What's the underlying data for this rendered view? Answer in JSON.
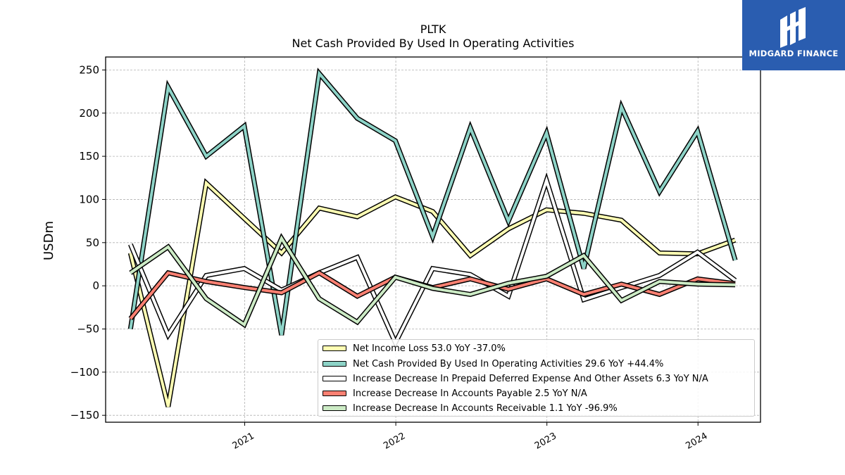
{
  "header": {
    "ticker": "PLTK",
    "subtitle": "Net Cash Provided By Used In Operating Activities"
  },
  "logo": {
    "text": "MIDGARD FINANCE",
    "color": "#2a5db0"
  },
  "chart_data": {
    "type": "line",
    "title": "PLTK",
    "subtitle": "Net Cash Provided By Used In Operating Activities",
    "xlabel": "",
    "ylabel": "USDm",
    "ylim": [
      -158,
      265
    ],
    "xlim": [
      "2020-01-31",
      "2024-05-31"
    ],
    "grid": true,
    "legend_position": "lower-right",
    "y_ticks": [
      -150,
      -100,
      -50,
      0,
      50,
      100,
      150,
      200,
      250
    ],
    "y_tick_labels": [
      "−150",
      "−100",
      "−50",
      "0",
      "50",
      "100",
      "150",
      "200",
      "250"
    ],
    "x_ticks": [
      "2021-01-01",
      "2022-01-01",
      "2023-01-01",
      "2024-01-01"
    ],
    "x_tick_labels": [
      "2021",
      "2022",
      "2023",
      "2024"
    ],
    "x": [
      "2020-03-31",
      "2020-06-30",
      "2020-09-30",
      "2020-12-31",
      "2021-03-31",
      "2021-06-30",
      "2021-09-30",
      "2021-12-31",
      "2022-03-31",
      "2022-06-30",
      "2022-09-30",
      "2022-12-31",
      "2023-03-31",
      "2023-06-30",
      "2023-09-30",
      "2023-12-31",
      "2024-03-31"
    ],
    "series": [
      {
        "name": "Net Income Loss",
        "legend_label": "Net Income Loss  53.0 YoY -37.0%",
        "color": "#ffffb3",
        "values": [
          38,
          -140,
          119,
          78,
          38,
          90,
          80,
          103,
          86,
          35,
          66,
          88,
          84,
          76,
          38,
          37,
          53
        ]
      },
      {
        "name": "Net Cash Provided By Used In Operating Activities",
        "legend_label": "Net Cash Provided By Used In Operating Activities  29.6 YoY +44.4%",
        "color": "#8dd3c7",
        "values": [
          -50,
          230,
          150,
          185,
          -57,
          246,
          194,
          168,
          57,
          183,
          75,
          177,
          20,
          207,
          109,
          179,
          29.6
        ]
      },
      {
        "name": "Increase Decrease In Prepaid Deferred Expense And Other Assets",
        "legend_label": "Increase Decrease In Prepaid Deferred Expense And Other Assets  6.3 YoY N/A",
        "color": "#ffffff",
        "values": [
          48,
          -57,
          12,
          20,
          -5,
          15,
          33,
          -66,
          20,
          13,
          -12,
          122,
          -16,
          -2,
          12,
          39,
          6.3
        ]
      },
      {
        "name": "Increase Decrease In Accounts Payable",
        "legend_label": "Increase Decrease In Accounts Payable  2.5 YoY N/A",
        "color": "#fb8072",
        "values": [
          -38,
          15,
          5,
          -2,
          -8,
          15,
          -12,
          10,
          -2,
          8,
          -4,
          8,
          -10,
          2,
          -10,
          8,
          2.5
        ]
      },
      {
        "name": "Increase Decrease In Accounts Receivable",
        "legend_label": "Increase Decrease In Accounts Receivable  1.1 YoY -96.9%",
        "color": "#ccebc5",
        "values": [
          15,
          45,
          -15,
          -45,
          55,
          -15,
          -42,
          10,
          -3,
          -10,
          3,
          11,
          35,
          -17,
          5,
          2,
          1.1
        ]
      }
    ]
  }
}
